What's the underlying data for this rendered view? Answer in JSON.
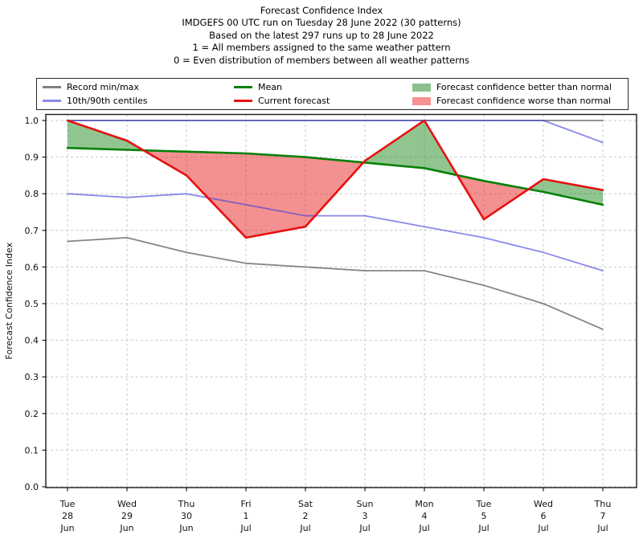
{
  "title_lines": [
    "Forecast Confidence Index",
    "IMDGEFS 00 UTC run on Tuesday 28 June 2022 (30 patterns)",
    "Based on the latest 297 runs up to 28 June 2022",
    "1 = All members assigned to the same weather pattern",
    "0 = Even distribution of members between all weather patterns"
  ],
  "legend": {
    "items": [
      {
        "label": "Record min/max",
        "swatch": "line",
        "color": "#808080"
      },
      {
        "label": "10th/90th centiles",
        "swatch": "line",
        "color": "#8a8af0"
      },
      {
        "label": "Mean",
        "swatch": "line",
        "color": "#078007"
      },
      {
        "label": "Current forecast",
        "swatch": "line",
        "color": "#e81010"
      },
      {
        "label": "Forecast confidence better than normal",
        "swatch": "patch",
        "color": "#8cc08c"
      },
      {
        "label": "Forecast confidence worse than normal",
        "swatch": "patch",
        "color": "#f79292"
      }
    ]
  },
  "chart_data": {
    "type": "line",
    "title": "Forecast Confidence Index",
    "xlabel": "",
    "ylabel": "Forecast Confidence Index",
    "ylim": [
      0.0,
      1.0
    ],
    "grid": true,
    "legend_position": "top",
    "ytick_labels": [
      "0.0",
      "0.1",
      "0.2",
      "0.3",
      "0.4",
      "0.5",
      "0.6",
      "0.7",
      "0.8",
      "0.9",
      "1.0"
    ],
    "x_labels": [
      [
        "Tue",
        "28",
        "Jun"
      ],
      [
        "Wed",
        "29",
        "Jun"
      ],
      [
        "Thu",
        "30",
        "Jun"
      ],
      [
        "Fri",
        "1",
        "Jul"
      ],
      [
        "Sat",
        "2",
        "Jul"
      ],
      [
        "Sun",
        "3",
        "Jul"
      ],
      [
        "Mon",
        "4",
        "Jul"
      ],
      [
        "Tue",
        "5",
        "Jul"
      ],
      [
        "Wed",
        "6",
        "Jul"
      ],
      [
        "Thu",
        "7",
        "Jul"
      ]
    ],
    "series": [
      {
        "key": "record_max",
        "name": "Record max",
        "color": "#787878",
        "opacity": 0.9,
        "width": 1.8,
        "values": [
          1.0,
          1.0,
          1.0,
          1.0,
          1.0,
          1.0,
          1.0,
          1.0,
          1.0,
          1.0
        ]
      },
      {
        "key": "record_min",
        "name": "Record min",
        "color": "#787878",
        "opacity": 0.9,
        "width": 1.8,
        "values": [
          0.67,
          0.68,
          0.64,
          0.61,
          0.6,
          0.59,
          0.59,
          0.55,
          0.5,
          0.43
        ]
      },
      {
        "key": "centile_90",
        "name": "90th centile",
        "color": "#3c3cdc",
        "opacity": 0.6,
        "width": 1.8,
        "values": [
          1.0,
          1.0,
          1.0,
          1.0,
          1.0,
          1.0,
          1.0,
          1.0,
          1.0,
          0.94
        ]
      },
      {
        "key": "centile_10",
        "name": "10th centile",
        "color": "#3c3cdc",
        "opacity": 0.6,
        "width": 1.8,
        "values": [
          0.8,
          0.79,
          0.8,
          0.77,
          0.74,
          0.74,
          0.71,
          0.68,
          0.64,
          0.59
        ]
      },
      {
        "key": "mean",
        "name": "Mean",
        "color": "#078007",
        "opacity": 1,
        "width": 2.6,
        "values": [
          0.925,
          0.92,
          0.915,
          0.91,
          0.9,
          0.885,
          0.87,
          0.835,
          0.805,
          0.77
        ]
      },
      {
        "key": "current",
        "name": "Current forecast",
        "color": "#e81010",
        "opacity": 1,
        "width": 2.6,
        "values": [
          1.0,
          0.945,
          0.85,
          0.68,
          0.71,
          0.89,
          1.0,
          0.73,
          0.84,
          0.81
        ]
      }
    ],
    "fills": {
      "between": [
        "current",
        "mean"
      ],
      "rule": "green where current > mean, red where current < mean",
      "better_color": "#228B22",
      "worse_color": "#e82222",
      "opacity": 0.5
    }
  }
}
